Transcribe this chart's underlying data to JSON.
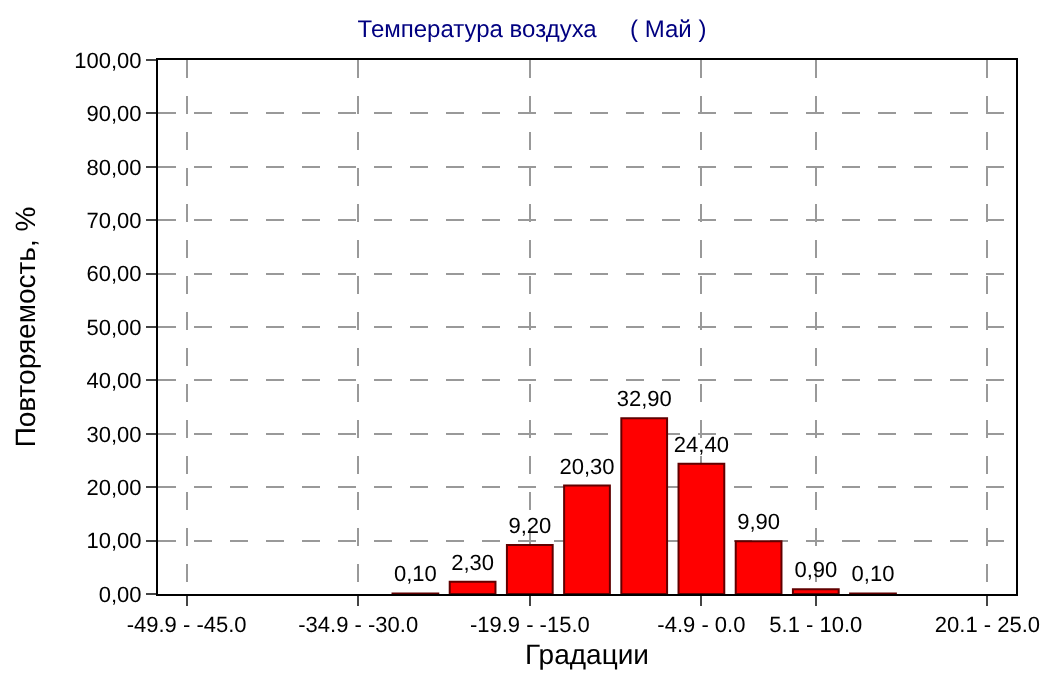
{
  "chart_data": {
    "type": "bar",
    "title": "Температура воздуха     ( Май )",
    "xlabel": "Градации",
    "ylabel": "Повторяемость, %",
    "categories": [
      "-49.9 - -45.0",
      null,
      null,
      "-34.9 - -30.0",
      null,
      null,
      "-19.9 - -15.0",
      null,
      null,
      "-4.9 - 0.0",
      null,
      "5.1 - 10.0",
      null,
      null,
      "20.1 - 25.0"
    ],
    "values": [
      0,
      0,
      0,
      0,
      0.1,
      2.3,
      9.2,
      20.3,
      32.9,
      24.4,
      9.9,
      0.9,
      0.1,
      0,
      0
    ],
    "value_labels": [
      null,
      null,
      null,
      null,
      "0,10",
      "2,30",
      "9,20",
      "20,30",
      "32,90",
      "24,40",
      "9,90",
      "0,90",
      "0,10",
      null,
      null
    ],
    "color": "#ff0000",
    "ylim": [
      0,
      100
    ],
    "yticks": [
      {
        "value": 0,
        "label": "0,00"
      },
      {
        "value": 10,
        "label": "10,00"
      },
      {
        "value": 20,
        "label": "20,00"
      },
      {
        "value": 30,
        "label": "30,00"
      },
      {
        "value": 40,
        "label": "40,00"
      },
      {
        "value": 50,
        "label": "50,00"
      },
      {
        "value": 60,
        "label": "60,00"
      },
      {
        "value": 70,
        "label": "70,00"
      },
      {
        "value": 80,
        "label": "80,00"
      },
      {
        "value": 90,
        "label": "90,00"
      },
      {
        "value": 100,
        "label": "100,00"
      }
    ],
    "grid": true
  }
}
